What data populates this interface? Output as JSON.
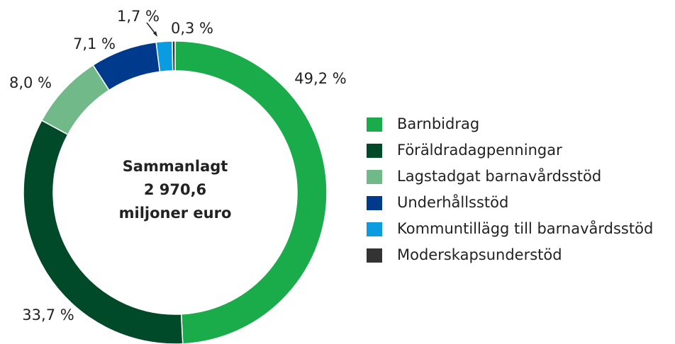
{
  "chart_data": {
    "type": "donut",
    "categories": [
      "Barnbidrag",
      "Föräldradagpenningar",
      "Lagstadgat barnavårdsstöd",
      "Underhållsstöd",
      "Kommuntillägg till barnavårdsstöd",
      "Moderskapsunderstöd"
    ],
    "values": [
      49.2,
      33.7,
      8.0,
      7.1,
      1.7,
      0.3
    ],
    "value_labels": [
      "49,2 %",
      "33,7 %",
      "8,0 %",
      "7,1 %",
      "1,7 %",
      "0,3 %"
    ],
    "colors": [
      "#1aab4b",
      "#004a2a",
      "#72b98a",
      "#003a8c",
      "#0a9be0",
      "#333333"
    ],
    "center_text": [
      "Sammanlagt",
      "2 970,6",
      "miljoner euro"
    ],
    "legend": "right"
  }
}
